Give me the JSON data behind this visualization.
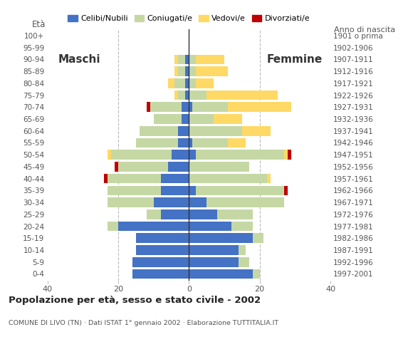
{
  "age_groups": [
    "0-4",
    "5-9",
    "10-14",
    "15-19",
    "20-24",
    "25-29",
    "30-34",
    "35-39",
    "40-44",
    "45-49",
    "50-54",
    "55-59",
    "60-64",
    "65-69",
    "70-74",
    "75-79",
    "80-84",
    "85-89",
    "90-94",
    "95-99",
    "100+"
  ],
  "birth_years": [
    "1997-2001",
    "1992-1996",
    "1987-1991",
    "1982-1986",
    "1977-1981",
    "1972-1976",
    "1967-1971",
    "1962-1966",
    "1957-1961",
    "1952-1956",
    "1947-1951",
    "1942-1946",
    "1937-1941",
    "1932-1936",
    "1927-1931",
    "1922-1926",
    "1917-1921",
    "1912-1916",
    "1907-1911",
    "1902-1906",
    "1901 o prima"
  ],
  "male_celibi": [
    16,
    16,
    15,
    15,
    20,
    8,
    10,
    8,
    8,
    6,
    5,
    3,
    3,
    2,
    2,
    1,
    1,
    1,
    1,
    0,
    0
  ],
  "male_coniugati": [
    0,
    0,
    0,
    0,
    3,
    4,
    13,
    15,
    15,
    14,
    17,
    12,
    11,
    8,
    9,
    2,
    3,
    2,
    2,
    0,
    0
  ],
  "male_vedovi": [
    0,
    0,
    0,
    0,
    0,
    0,
    0,
    0,
    0,
    0,
    1,
    0,
    0,
    0,
    0,
    1,
    2,
    1,
    1,
    0,
    0
  ],
  "male_divorziati": [
    0,
    0,
    0,
    0,
    0,
    0,
    0,
    0,
    1,
    1,
    0,
    0,
    0,
    0,
    1,
    0,
    0,
    0,
    0,
    0,
    0
  ],
  "female_nubili": [
    18,
    14,
    14,
    18,
    12,
    8,
    5,
    2,
    0,
    0,
    2,
    1,
    0,
    0,
    1,
    0,
    0,
    0,
    0,
    0,
    0
  ],
  "female_coniugate": [
    2,
    3,
    2,
    3,
    6,
    10,
    22,
    25,
    22,
    17,
    25,
    10,
    15,
    7,
    10,
    5,
    2,
    2,
    2,
    0,
    0
  ],
  "female_vedove": [
    0,
    0,
    0,
    0,
    0,
    0,
    0,
    0,
    1,
    0,
    1,
    5,
    8,
    8,
    18,
    20,
    5,
    9,
    8,
    0,
    0
  ],
  "female_divorziate": [
    0,
    0,
    0,
    0,
    0,
    0,
    0,
    1,
    0,
    0,
    1,
    0,
    0,
    0,
    0,
    0,
    0,
    0,
    0,
    0,
    0
  ],
  "colors": {
    "celibi_nubili": "#4472c4",
    "coniugati": "#c5d8a4",
    "vedovi": "#ffd966",
    "divorziati": "#c00000"
  },
  "xlim": 40,
  "title": "Popolazione per età, sesso e stato civile - 2002",
  "subtitle": "COMUNE DI LIVO (TN) · Dati ISTAT 1° gennaio 2002 · Elaborazione TUTTITALIA.IT",
  "label_maschi": "Maschi",
  "label_femmine": "Femmine",
  "ylabel_left": "Età",
  "ylabel_right": "Anno di nascita",
  "legend_labels": [
    "Celibi/Nubili",
    "Coniugati/e",
    "Vedovi/e",
    "Divorziati/e"
  ]
}
